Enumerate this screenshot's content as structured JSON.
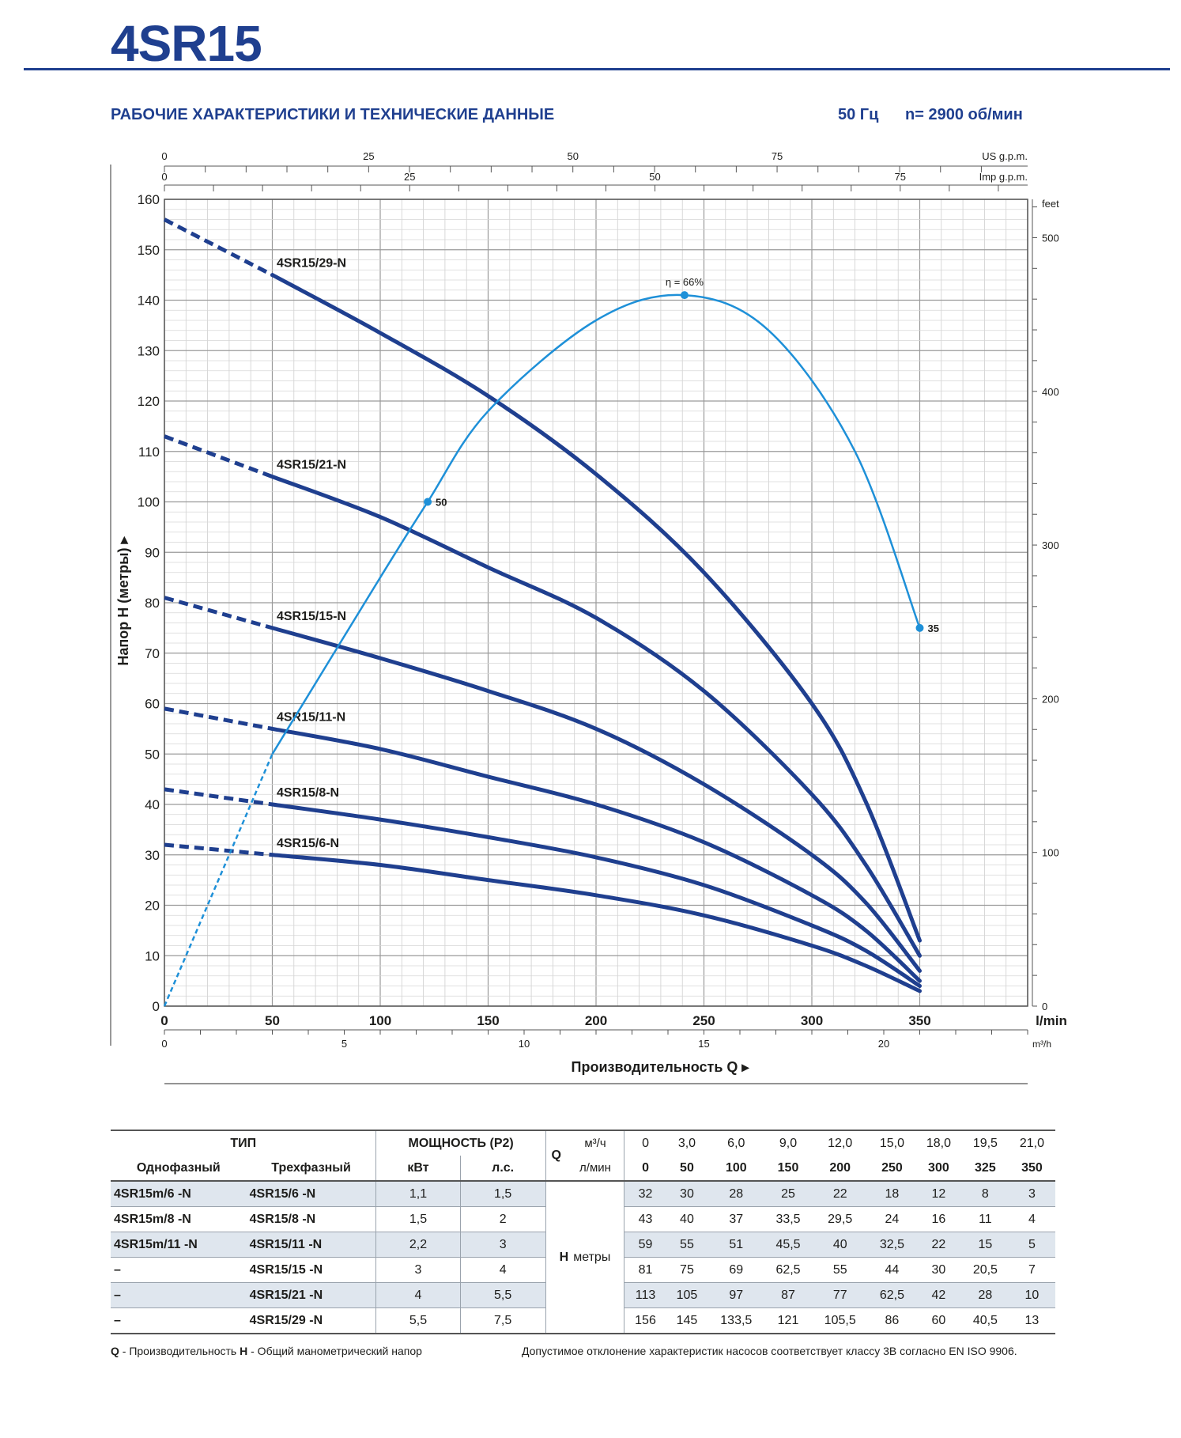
{
  "header": {
    "title": "4SR15",
    "subtitle": "РАБОЧИЕ ХАРАКТЕРИСТИКИ И ТЕХНИЧЕСКИЕ ДАННЫЕ",
    "frequency": "50 Гц",
    "speed": "n= 2900 об/мин"
  },
  "colors": {
    "brand": "#1f3f8f",
    "curve": "#1f3f8f",
    "efficiency": "#1e90d8",
    "grid": "#c8c8c8"
  },
  "chart_data": {
    "type": "line",
    "xlabel": "Производительность Q",
    "ylabel": "Напор H (метры)",
    "x_unit": "l/min",
    "xlim": [
      0,
      400
    ],
    "ylim": [
      0,
      160
    ],
    "x_ticks": [
      0,
      50,
      100,
      150,
      200,
      250,
      300,
      350
    ],
    "y_ticks": [
      0,
      10,
      20,
      30,
      40,
      50,
      60,
      70,
      80,
      90,
      100,
      110,
      120,
      130,
      140,
      150,
      160
    ],
    "secondary_axes": {
      "m3h": {
        "label": "m³/h",
        "ticks": [
          0,
          5,
          10,
          15,
          20
        ]
      },
      "us_gpm": {
        "label": "US g.p.m.",
        "ticks": [
          0,
          25,
          50,
          75
        ]
      },
      "imp_gpm": {
        "label": "Imp g.p.m.",
        "ticks": [
          0,
          25,
          50,
          75
        ]
      },
      "feet": {
        "label": "feet",
        "ticks": [
          0,
          100,
          200,
          300,
          400,
          500
        ]
      }
    },
    "grid": true,
    "series": [
      {
        "name": "4SR15/29-N",
        "x": [
          0,
          50,
          100,
          150,
          200,
          250,
          300,
          325,
          350
        ],
        "values": [
          156,
          145,
          133.5,
          121,
          105.5,
          86,
          60,
          40.5,
          13
        ]
      },
      {
        "name": "4SR15/21-N",
        "x": [
          0,
          50,
          100,
          150,
          200,
          250,
          300,
          325,
          350
        ],
        "values": [
          113,
          105,
          97,
          87,
          77,
          62.5,
          42,
          28,
          10
        ]
      },
      {
        "name": "4SR15/15-N",
        "x": [
          0,
          50,
          100,
          150,
          200,
          250,
          300,
          325,
          350
        ],
        "values": [
          81,
          75,
          69,
          62.5,
          55,
          44,
          30,
          20.5,
          7
        ]
      },
      {
        "name": "4SR15/11-N",
        "x": [
          0,
          50,
          100,
          150,
          200,
          250,
          300,
          325,
          350
        ],
        "values": [
          59,
          55,
          51,
          45.5,
          40,
          32.5,
          22,
          15,
          5
        ]
      },
      {
        "name": "4SR15/8-N",
        "x": [
          0,
          50,
          100,
          150,
          200,
          250,
          300,
          325,
          350
        ],
        "values": [
          43,
          40,
          37,
          33.5,
          29.5,
          24,
          16,
          11,
          4
        ]
      },
      {
        "name": "4SR15/6-N",
        "x": [
          0,
          50,
          100,
          150,
          200,
          250,
          300,
          325,
          350
        ],
        "values": [
          32,
          30,
          28,
          25,
          22,
          18,
          12,
          8,
          3
        ]
      }
    ],
    "efficiency": {
      "label": "η = 66%",
      "points": [
        {
          "x": 122,
          "label": "50"
        },
        {
          "x": 241,
          "label": ""
        },
        {
          "x": 350,
          "label": "35"
        }
      ],
      "curve_x": [
        0,
        50,
        100,
        122,
        150,
        200,
        241,
        280,
        320,
        350
      ],
      "curve_y": [
        0,
        50,
        85,
        100,
        118,
        136,
        141,
        134,
        110,
        75
      ]
    }
  },
  "table": {
    "h_type": "ТИП",
    "h_power": "МОЩНОСТЬ (P2)",
    "h_q": "Q",
    "h_single": "Однофазный",
    "h_three": "Трехфазный",
    "h_kw": "кВт",
    "h_hp": "л.с.",
    "h_m3h": "м³/ч",
    "h_lmin": "л/мин",
    "q_m3h": [
      "0",
      "3,0",
      "6,0",
      "9,0",
      "12,0",
      "15,0",
      "18,0",
      "19,5",
      "21,0"
    ],
    "q_lmin": [
      "0",
      "50",
      "100",
      "150",
      "200",
      "250",
      "300",
      "325",
      "350"
    ],
    "h_label": "H",
    "h_unit": "метры",
    "rows": [
      {
        "single": "4SR15m/6  -N",
        "three": "4SR15/6  -N",
        "kw": "1,1",
        "hp": "1,5",
        "h": [
          "32",
          "30",
          "28",
          "25",
          "22",
          "18",
          "12",
          "8",
          "3"
        ]
      },
      {
        "single": "4SR15m/8  -N",
        "three": "4SR15/8  -N",
        "kw": "1,5",
        "hp": "2",
        "h": [
          "43",
          "40",
          "37",
          "33,5",
          "29,5",
          "24",
          "16",
          "11",
          "4"
        ]
      },
      {
        "single": "4SR15m/11 -N",
        "three": "4SR15/11 -N",
        "kw": "2,2",
        "hp": "3",
        "h": [
          "59",
          "55",
          "51",
          "45,5",
          "40",
          "32,5",
          "22",
          "15",
          "5"
        ]
      },
      {
        "single": "–",
        "three": "4SR15/15 -N",
        "kw": "3",
        "hp": "4",
        "h": [
          "81",
          "75",
          "69",
          "62,5",
          "55",
          "44",
          "30",
          "20,5",
          "7"
        ]
      },
      {
        "single": "–",
        "three": "4SR15/21 -N",
        "kw": "4",
        "hp": "5,5",
        "h": [
          "113",
          "105",
          "97",
          "87",
          "77",
          "62,5",
          "42",
          "28",
          "10"
        ]
      },
      {
        "single": "–",
        "three": "4SR15/29 -N",
        "kw": "5,5",
        "hp": "7,5",
        "h": [
          "156",
          "145",
          "133,5",
          "121",
          "105,5",
          "86",
          "60",
          "40,5",
          "13"
        ]
      }
    ]
  },
  "footer": {
    "q_key": "Q",
    "q_text": " - Производительность  ",
    "h_key": "H",
    "h_text": " - Общий манометрический напор",
    "note": "Допустимое отклонение характеристик насосов соответствует классу 3В согласно EN ISO 9906."
  }
}
